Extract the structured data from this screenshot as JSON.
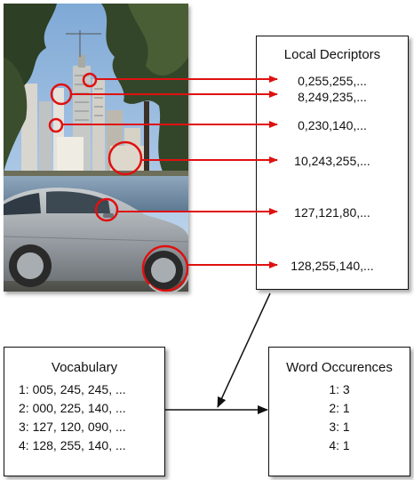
{
  "descriptors": {
    "title": "Local Decriptors",
    "items": [
      "0,255,255,...",
      "8,249,235,...",
      "0,230,140,...",
      "10,243,255,...",
      "127,121,80,...",
      "128,255,140,..."
    ]
  },
  "vocabulary": {
    "title": "Vocabulary",
    "items": [
      "1: 005, 245, 245, ...",
      "2: 000, 225, 140, ...",
      "3: 127, 120, 090, ...",
      "4: 128, 255, 140, ..."
    ]
  },
  "occurrences": {
    "title": "Word Occurences",
    "items": [
      "1: 3",
      "2: 1",
      "3: 1",
      "4: 1"
    ]
  },
  "colors": {
    "arrow_red": "#e01010",
    "line_black": "#111111"
  }
}
